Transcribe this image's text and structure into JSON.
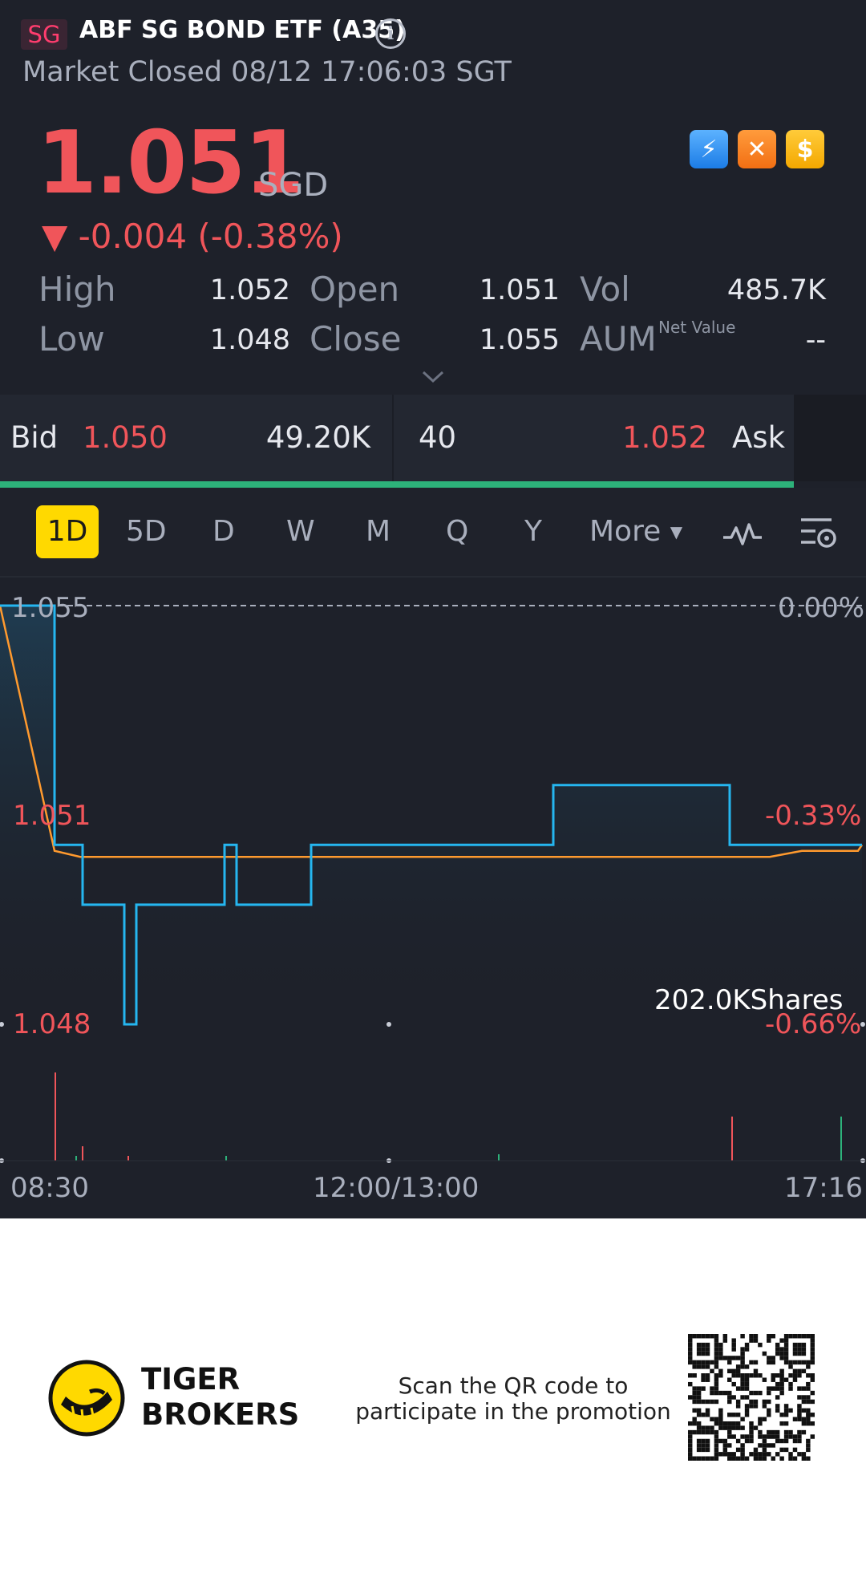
{
  "header": {
    "market_badge": "SG",
    "title": "ABF SG BOND ETF (A35)",
    "status": "Market Closed 08/12 17:06:03 SGT"
  },
  "quote": {
    "price": "1.051",
    "currency": "SGD",
    "change": "▼ -0.004 (-0.38%)",
    "badges": [
      "lightning-1-icon",
      "chart-badge-icon",
      "dollar-icon"
    ],
    "badge_glyphs": [
      "⚡",
      "✕",
      "$"
    ]
  },
  "stats": {
    "high_label": "High",
    "high": "1.052",
    "low_label": "Low",
    "low": "1.048",
    "open_label": "Open",
    "open": "1.051",
    "close_label": "Close",
    "close": "1.055",
    "vol_label": "Vol",
    "vol": "485.7K",
    "aum_label": "AUM",
    "aum_sup": "Net Value",
    "aum": "--"
  },
  "bidask": {
    "bid_label": "Bid",
    "bid_price": "1.050",
    "bid_size": "49.20K",
    "ask_size": "40",
    "ask_price": "1.052",
    "ask_label": "Ask"
  },
  "tabs": {
    "items": [
      "1D",
      "5D",
      "D",
      "W",
      "M",
      "Q",
      "Y"
    ],
    "active": "1D",
    "more": "More"
  },
  "chart": {
    "y_left": [
      "1.055",
      "1.051",
      "1.048"
    ],
    "y_right": [
      "0.00%",
      "-0.33%",
      "-0.66%"
    ],
    "x_labels": [
      "08:30",
      "12:00/13:00",
      "17:16"
    ],
    "volume_label": "202.0KShares"
  },
  "chart_data": {
    "type": "line",
    "ylim": [
      1.048,
      1.055
    ],
    "series": [
      {
        "values": [
          1.055,
          1.055,
          1.055,
          1.051,
          1.051,
          1.05,
          1.05,
          1.048,
          1.048,
          1.05,
          1.05,
          1.051,
          1.051,
          1.05,
          1.05,
          1.051,
          1.051,
          1.051,
          1.052,
          1.052,
          1.052,
          1.051,
          1.051
        ]
      },
      {
        "values": [
          1.055,
          1.0509,
          1.0508,
          1.0508,
          1.0508,
          1.0508,
          1.0508,
          1.0508,
          1.0508,
          1.0508,
          1.0508,
          1.0508,
          1.0508,
          1.0508,
          1.0508,
          1.0509,
          1.0509,
          1.0509,
          1.0509,
          1.0509,
          1.0509,
          1.0509,
          1.051
        ]
      }
    ],
    "color_price": "#25b6f0",
    "color_avg": "#ff9a2e"
  },
  "footer": {
    "brand_line1": "TIGER",
    "brand_line2": "BROKERS",
    "promo": "Scan the QR code to participate in the promotion"
  },
  "colors": {
    "background": "#1e212a",
    "down": "#f0555a",
    "up": "#2db27a",
    "accent": "#ffd900"
  }
}
